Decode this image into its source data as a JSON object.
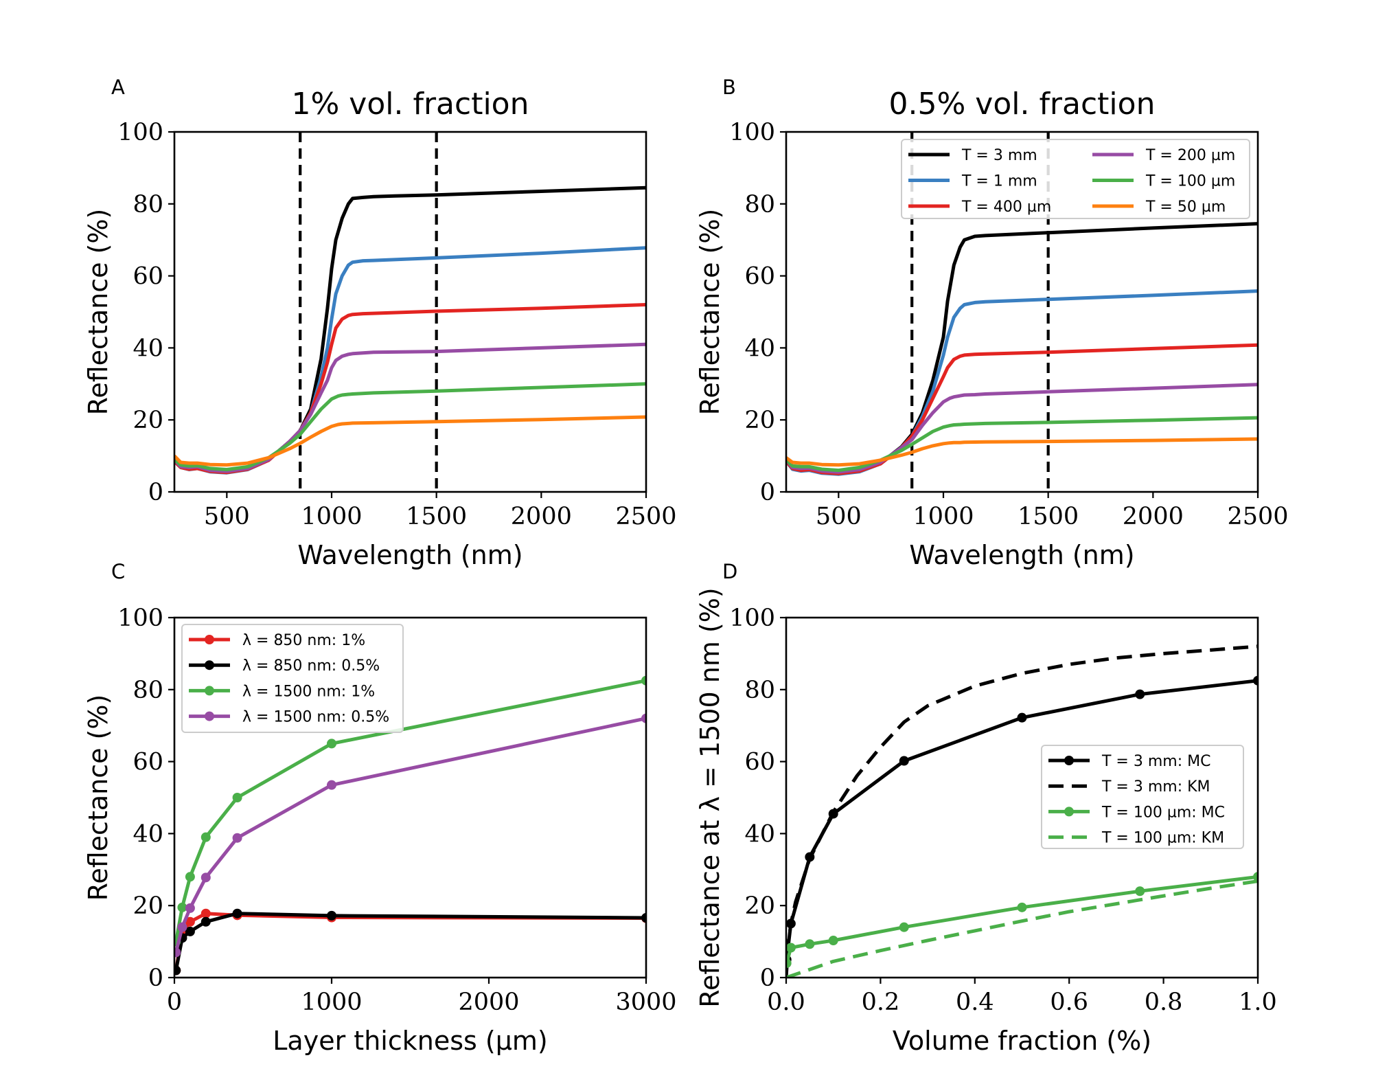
{
  "colors": {
    "black": "#000000",
    "blue": "#3a7fc1",
    "red": "#e32421",
    "purple": "#974ca4",
    "green": "#4aaf49",
    "orange": "#fe8010"
  },
  "chart_data": [
    {
      "id": "A",
      "type": "line",
      "title": "1% vol. fraction",
      "xlabel": "Wavelength (nm)",
      "ylabel": "Reflectance (%)",
      "xlim": [
        250,
        2500
      ],
      "ylim": [
        0,
        100
      ],
      "xticks": [
        500,
        1000,
        1500,
        2000,
        2500
      ],
      "yticks": [
        0,
        20,
        40,
        60,
        80,
        100
      ],
      "xtick_labels": [
        "500",
        "1000",
        "1500",
        "2000",
        "2500"
      ],
      "ytick_labels": [
        "0",
        "20",
        "40",
        "60",
        "80",
        "100"
      ],
      "vlines": [
        850,
        1500
      ],
      "series": [
        {
          "name": "T = 3 mm",
          "color": "black",
          "x": [
            250,
            280,
            320,
            360,
            420,
            500,
            600,
            700,
            800,
            850,
            900,
            950,
            980,
            1000,
            1020,
            1050,
            1080,
            1100,
            1150,
            1200,
            1300,
            1500,
            2000,
            2500
          ],
          "y": [
            9,
            7,
            6.5,
            6.8,
            5.8,
            5.5,
            6.5,
            9,
            14,
            17,
            23,
            37,
            51,
            62,
            70,
            76,
            80,
            81.5,
            81.8,
            82,
            82.2,
            82.5,
            83.5,
            84.5
          ]
        },
        {
          "name": "T = 1 mm",
          "color": "blue",
          "x": [
            250,
            280,
            320,
            360,
            420,
            500,
            600,
            700,
            800,
            850,
            900,
            950,
            980,
            1000,
            1020,
            1050,
            1080,
            1100,
            1150,
            1200,
            1500,
            2000,
            2500
          ],
          "y": [
            8.5,
            6.8,
            6.2,
            6.5,
            5.6,
            5.3,
            6.2,
            8.8,
            14,
            17,
            22,
            32,
            40,
            48,
            55,
            60,
            63,
            63.8,
            64.2,
            64.3,
            65,
            66.3,
            67.8
          ]
        },
        {
          "name": "T = 400 µm",
          "color": "red",
          "x": [
            250,
            280,
            320,
            360,
            420,
            500,
            600,
            700,
            800,
            850,
            900,
            950,
            980,
            1000,
            1020,
            1050,
            1080,
            1100,
            1150,
            1200,
            1500,
            2000,
            2500
          ],
          "y": [
            8.5,
            6.8,
            6.3,
            6.5,
            5.7,
            5.4,
            6.3,
            8.8,
            14,
            17,
            22,
            30,
            36,
            41,
            45.5,
            48,
            49,
            49.3,
            49.5,
            49.6,
            50.2,
            51,
            52
          ]
        },
        {
          "name": "T = 200 µm",
          "color": "purple",
          "x": [
            250,
            280,
            320,
            360,
            420,
            500,
            600,
            700,
            800,
            850,
            900,
            950,
            980,
            1000,
            1020,
            1050,
            1080,
            1100,
            1150,
            1200,
            1500,
            2000,
            2500
          ],
          "y": [
            9,
            7,
            6.8,
            7,
            6,
            5.7,
            6.5,
            9,
            14,
            17,
            21.5,
            27.5,
            31,
            34.5,
            36.5,
            37.7,
            38.2,
            38.4,
            38.6,
            38.8,
            39,
            40,
            41
          ]
        },
        {
          "name": "T = 100 µm",
          "color": "green",
          "x": [
            250,
            280,
            320,
            360,
            420,
            500,
            600,
            700,
            800,
            850,
            900,
            950,
            1000,
            1030,
            1050,
            1080,
            1100,
            1200,
            1500,
            2000,
            2500
          ],
          "y": [
            9,
            7.5,
            7.2,
            7.3,
            6.5,
            6.2,
            7,
            9.5,
            13.5,
            16,
            19.5,
            23,
            25.8,
            26.6,
            26.9,
            27.1,
            27.2,
            27.5,
            28,
            29,
            30
          ]
        },
        {
          "name": "T = 50 µm",
          "color": "orange",
          "x": [
            250,
            280,
            320,
            360,
            420,
            500,
            600,
            700,
            800,
            850,
            900,
            950,
            1000,
            1030,
            1050,
            1080,
            1100,
            1200,
            1500,
            2000,
            2500
          ],
          "y": [
            10,
            8.2,
            8,
            8,
            7.6,
            7.5,
            8,
            9.5,
            12,
            13.5,
            15.2,
            16.8,
            18.2,
            18.7,
            18.9,
            19,
            19.1,
            19.2,
            19.5,
            20.1,
            20.8
          ]
        }
      ]
    },
    {
      "id": "B",
      "type": "line",
      "title": "0.5% vol. fraction",
      "xlabel": "Wavelength (nm)",
      "ylabel": "Reflectance (%)",
      "xlim": [
        250,
        2500
      ],
      "ylim": [
        0,
        100
      ],
      "xticks": [
        500,
        1000,
        1500,
        2000,
        2500
      ],
      "yticks": [
        0,
        20,
        40,
        60,
        80,
        100
      ],
      "xtick_labels": [
        "500",
        "1000",
        "1500",
        "2000",
        "2500"
      ],
      "ytick_labels": [
        "0",
        "20",
        "40",
        "60",
        "80",
        "100"
      ],
      "vlines": [
        850,
        1500
      ],
      "legend": {
        "location": "upper-right",
        "columns": 2
      },
      "series": [
        {
          "name": "T = 3 mm",
          "color": "black",
          "x": [
            250,
            280,
            320,
            360,
            420,
            500,
            600,
            700,
            800,
            850,
            900,
            950,
            1000,
            1020,
            1050,
            1080,
            1100,
            1150,
            1200,
            1500,
            2000,
            2500
          ],
          "y": [
            9,
            6.5,
            6,
            6.2,
            5.3,
            5,
            5.8,
            8,
            12.5,
            16,
            22,
            31,
            43,
            53,
            63,
            68,
            70,
            71,
            71.2,
            72,
            73.3,
            74.5
          ]
        },
        {
          "name": "T = 1 mm",
          "color": "blue",
          "x": [
            250,
            280,
            320,
            360,
            420,
            500,
            600,
            700,
            800,
            850,
            900,
            950,
            1000,
            1020,
            1050,
            1080,
            1100,
            1150,
            1200,
            1500,
            2000,
            2500
          ],
          "y": [
            8.5,
            6.3,
            5.8,
            6,
            5.2,
            4.9,
            5.6,
            7.8,
            12.3,
            15.5,
            21,
            28,
            38,
            43,
            48.5,
            51,
            52,
            52.6,
            52.8,
            53.5,
            54.6,
            55.8
          ]
        },
        {
          "name": "T = 400 µm",
          "color": "red",
          "x": [
            250,
            280,
            320,
            360,
            420,
            500,
            600,
            700,
            800,
            850,
            900,
            950,
            1000,
            1020,
            1050,
            1080,
            1100,
            1150,
            1200,
            1500,
            2000,
            2500
          ],
          "y": [
            8.5,
            6.5,
            6,
            6.2,
            5.4,
            5.1,
            5.8,
            7.8,
            12.3,
            15.5,
            20,
            26,
            32,
            34.5,
            36.8,
            37.7,
            38,
            38.2,
            38.3,
            38.8,
            39.8,
            40.8
          ]
        },
        {
          "name": "T = 200 µm",
          "color": "purple",
          "x": [
            250,
            280,
            320,
            360,
            420,
            500,
            600,
            700,
            800,
            850,
            900,
            950,
            1000,
            1030,
            1050,
            1080,
            1100,
            1150,
            1200,
            1500,
            2000,
            2500
          ],
          "y": [
            9,
            6.8,
            6.5,
            6.6,
            5.8,
            5.5,
            6.2,
            8.2,
            12.3,
            14.5,
            18.5,
            22,
            25,
            26,
            26.4,
            26.7,
            26.9,
            27,
            27.2,
            27.8,
            28.8,
            29.8
          ]
        },
        {
          "name": "T = 100 µm",
          "color": "green",
          "x": [
            250,
            280,
            320,
            360,
            420,
            500,
            600,
            700,
            800,
            850,
            900,
            950,
            1000,
            1030,
            1050,
            1080,
            1100,
            1200,
            1500,
            2000,
            2500
          ],
          "y": [
            9,
            7.2,
            7,
            7,
            6.3,
            6,
            6.8,
            8.8,
            11.5,
            13.2,
            15,
            16.8,
            18,
            18.4,
            18.6,
            18.7,
            18.8,
            19,
            19.3,
            19.9,
            20.6
          ]
        },
        {
          "name": "T = 50 µm",
          "color": "orange",
          "x": [
            250,
            280,
            320,
            360,
            420,
            500,
            600,
            700,
            800,
            850,
            900,
            950,
            1000,
            1030,
            1050,
            1080,
            1100,
            1200,
            1500,
            2000,
            2500
          ],
          "y": [
            9.5,
            8.2,
            8,
            8,
            7.6,
            7.5,
            7.8,
            8.8,
            10.2,
            11,
            12,
            12.8,
            13.4,
            13.6,
            13.7,
            13.7,
            13.8,
            13.9,
            14,
            14.3,
            14.7
          ]
        }
      ]
    },
    {
      "id": "C",
      "type": "line",
      "markers": true,
      "title": "",
      "xlabel": "Layer thickness (µm)",
      "ylabel": "Reflectance (%)",
      "xlim": [
        0,
        3000
      ],
      "ylim": [
        0,
        100
      ],
      "xticks": [
        0,
        1000,
        2000,
        3000
      ],
      "yticks": [
        0,
        20,
        40,
        60,
        80,
        100
      ],
      "xtick_labels": [
        "0",
        "1000",
        "2000",
        "3000"
      ],
      "ytick_labels": [
        "0",
        "20",
        "40",
        "60",
        "80",
        "100"
      ],
      "legend": {
        "location": "upper-left",
        "columns": 1
      },
      "series": [
        {
          "name": "λ = 850 nm: 1%",
          "color": "red",
          "x": [
            10,
            50,
            100,
            200,
            400,
            1000,
            3000
          ],
          "y": [
            2,
            12.5,
            15.5,
            17.8,
            17.3,
            16.7,
            16.5
          ]
        },
        {
          "name": "λ = 850 nm: 0.5%",
          "color": "black",
          "x": [
            10,
            50,
            100,
            200,
            400,
            1000,
            3000
          ],
          "y": [
            2,
            11,
            12.8,
            15.5,
            17.8,
            17.2,
            16.6
          ]
        },
        {
          "name": "λ = 1500 nm: 1%",
          "color": "green",
          "x": [
            10,
            50,
            100,
            200,
            400,
            1000,
            3000
          ],
          "y": [
            10,
            19.5,
            28,
            39,
            50,
            65,
            82.5
          ]
        },
        {
          "name": "λ = 1500 nm: 0.5%",
          "color": "purple",
          "x": [
            10,
            50,
            100,
            200,
            400,
            1000,
            3000
          ],
          "y": [
            7,
            14,
            19.3,
            27.8,
            38.8,
            53.5,
            72
          ]
        }
      ]
    },
    {
      "id": "D",
      "type": "line",
      "markers": true,
      "title": "",
      "xlabel": "Volume fraction (%)",
      "ylabel": "Reflectance at λ = 1500 nm (%)",
      "xlim": [
        0.0,
        1.0
      ],
      "ylim": [
        0,
        100
      ],
      "xticks": [
        0.0,
        0.2,
        0.4,
        0.6,
        0.8,
        1.0
      ],
      "yticks": [
        0,
        20,
        40,
        60,
        80,
        100
      ],
      "xtick_labels": [
        "0.0",
        "0.2",
        "0.4",
        "0.6",
        "0.8",
        "1.0"
      ],
      "ytick_labels": [
        "0",
        "20",
        "40",
        "60",
        "80",
        "100"
      ],
      "legend": {
        "location": "center-right",
        "columns": 1
      },
      "series": [
        {
          "name": "T = 3 mm: MC",
          "color": "black",
          "style": "solid",
          "markers": true,
          "x": [
            0.001,
            0.01,
            0.05,
            0.1,
            0.25,
            0.5,
            0.75,
            1.0
          ],
          "y": [
            5,
            15,
            33.5,
            45.5,
            60.2,
            72.2,
            78.7,
            82.5
          ]
        },
        {
          "name": "T = 3 mm: KM",
          "color": "black",
          "style": "dashed",
          "markers": false,
          "x": [
            0.0,
            0.005,
            0.01,
            0.02,
            0.05,
            0.1,
            0.15,
            0.2,
            0.25,
            0.3,
            0.4,
            0.5,
            0.6,
            0.7,
            0.8,
            0.9,
            1.0
          ],
          "y": [
            0,
            10,
            15,
            21,
            33,
            46,
            56,
            64,
            71,
            75.5,
            81,
            84.5,
            87,
            88.8,
            90,
            91,
            92
          ]
        },
        {
          "name": "T = 100 µm: MC",
          "color": "green",
          "style": "solid",
          "markers": true,
          "x": [
            0.001,
            0.01,
            0.05,
            0.1,
            0.25,
            0.5,
            0.75,
            1.0
          ],
          "y": [
            4,
            8.3,
            9.3,
            10.3,
            14,
            19.5,
            24,
            28
          ]
        },
        {
          "name": "T = 100 µm: KM",
          "color": "green",
          "style": "dashed",
          "markers": false,
          "x": [
            0.0,
            0.1,
            0.2,
            0.3,
            0.4,
            0.5,
            0.6,
            0.7,
            0.8,
            0.9,
            1.0
          ],
          "y": [
            0,
            4.5,
            7.5,
            10.3,
            13,
            15.7,
            18.3,
            20.5,
            22.7,
            24.8,
            26.8
          ]
        }
      ]
    }
  ]
}
